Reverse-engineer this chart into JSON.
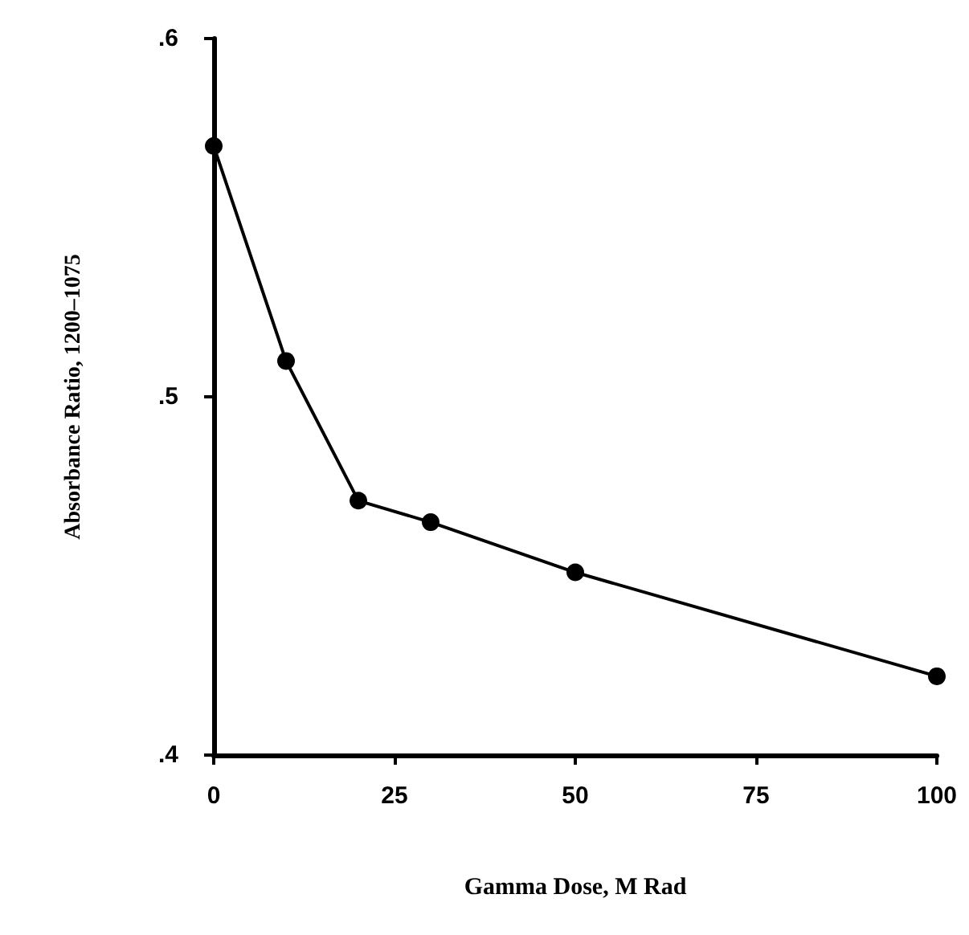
{
  "chart_data": {
    "type": "line",
    "xlabel": "Gamma Dose, M Rad",
    "ylabel": "Absorbance Ratio, 1200–1075",
    "x": [
      0,
      10,
      20,
      30,
      50,
      100
    ],
    "series": [
      {
        "color": "#000000",
        "values": [
          0.57,
          0.51,
          0.471,
          0.465,
          0.451,
          0.422
        ]
      }
    ],
    "xlim": [
      0,
      100
    ],
    "xticks": [
      0,
      25,
      50,
      75,
      100
    ],
    "ylim": [
      0.4,
      0.6
    ],
    "yticks": [
      {
        "value": 0.4,
        "label": ".4"
      },
      {
        "value": 0.5,
        "label": ".5"
      },
      {
        "value": 0.6,
        "label": ".6"
      }
    ],
    "grid": false,
    "marker": "circle",
    "line_style": "solid"
  }
}
